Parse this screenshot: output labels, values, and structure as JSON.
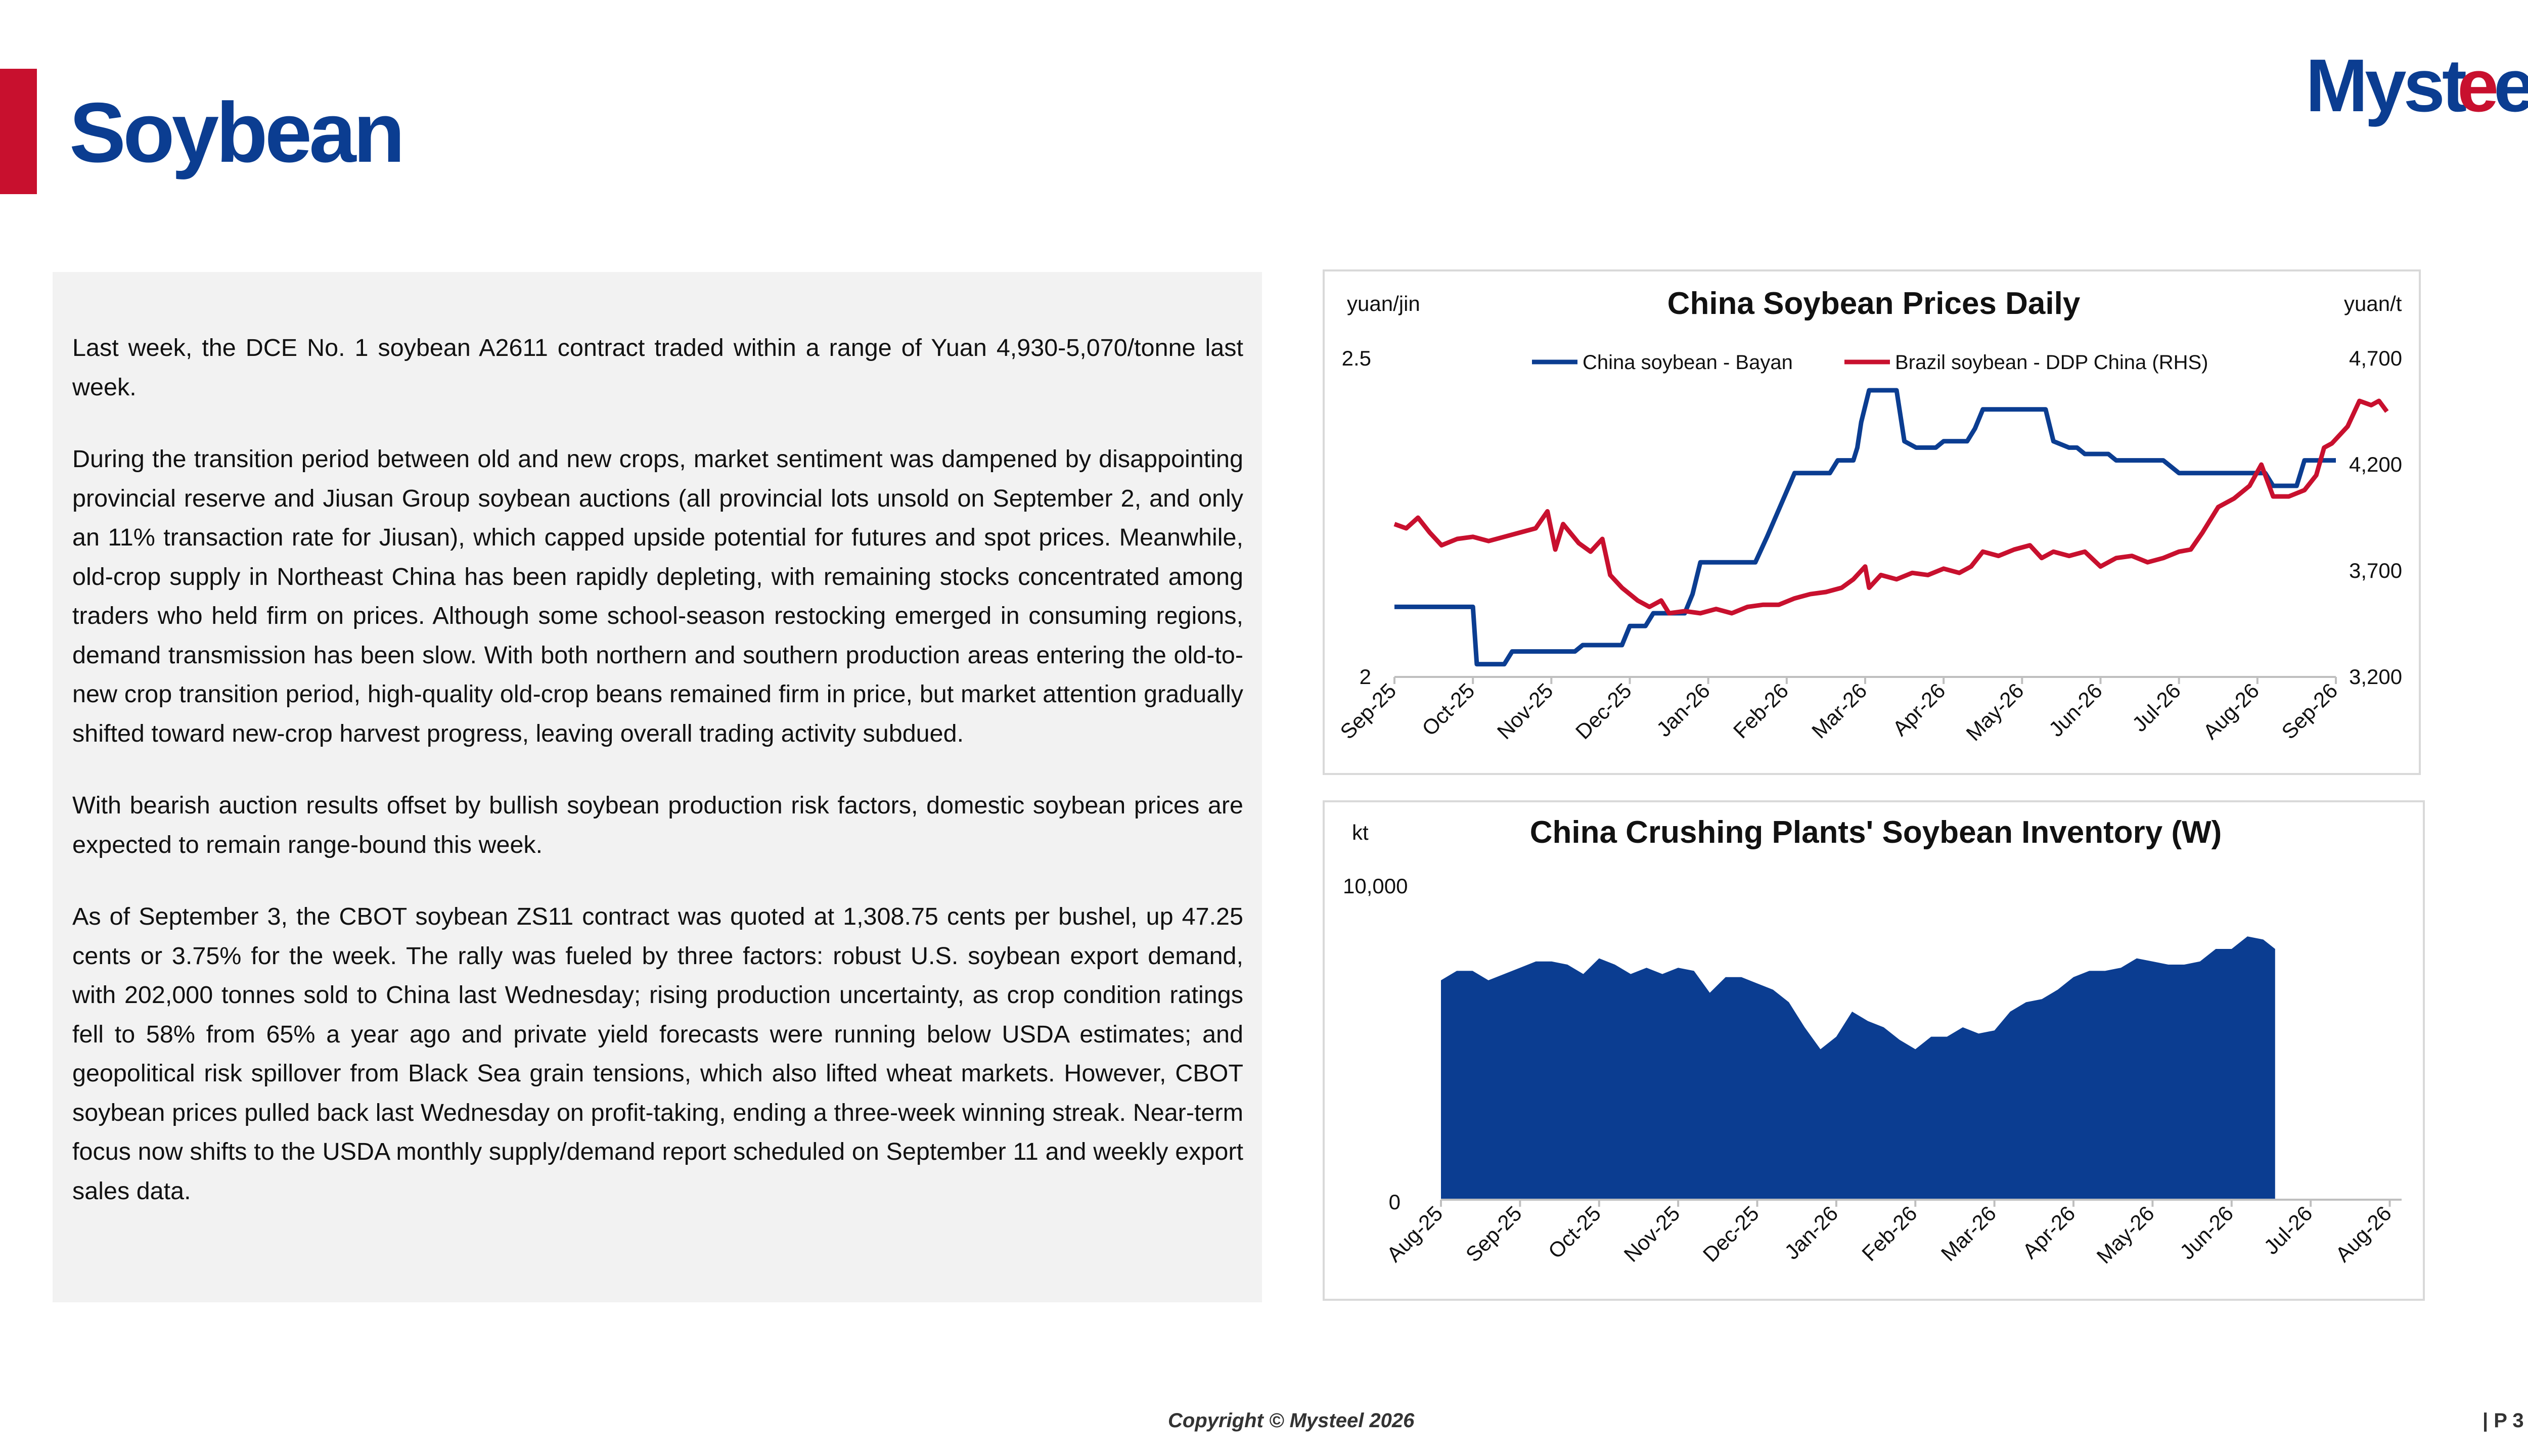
{
  "page": {
    "title": "Soybean",
    "logo_text": "Mysteel",
    "footer": "Copyright © Mysteel 2026",
    "page_number": "| P 3",
    "colors": {
      "brand_blue": "#0b3d91",
      "brand_red": "#c8102e",
      "panel_bg": "#f2f2f2"
    }
  },
  "text": {
    "paragraphs": [
      "Last week, the DCE No. 1 soybean A2611 contract traded within a range of Yuan 4,930-5,070/tonne last week.",
      "During the transition period between old and new crops, market sentiment was dampened by disappointing provincial reserve and Jiusan Group soybean auctions (all provincial lots unsold on September 2, and only an 11% transaction rate for Jiusan), which capped upside potential for futures and spot prices. Meanwhile, old-crop supply in Northeast China has been rapidly depleting, with remaining stocks concentrated among traders who held firm on prices. Although some school-season restocking emerged in consuming regions, demand transmission has been slow. With both northern and southern production areas entering the old-to-new crop transition period, high-quality old-crop beans remained firm in price, but market attention gradually shifted toward new-crop harvest progress, leaving overall trading activity subdued.",
      "With bearish auction results offset by bullish soybean production risk factors, domestic soybean prices are expected to remain range-bound this week.",
      "As of September 3, the CBOT soybean ZS11 contract was quoted at 1,308.75 cents per bushel, up 47.25 cents or 3.75% for the week. The rally was fueled by three factors: robust U.S. soybean export demand, with 202,000 tonnes sold to China last Wednesday; rising production uncertainty, as crop condition ratings fell to 58% from 65% a year ago and private yield forecasts were running below USDA estimates; and geopolitical risk spillover from Black Sea grain tensions, which also lifted wheat markets. However, CBOT soybean prices pulled back last Wednesday on profit-taking, ending a three-week winning streak. Near-term focus now shifts to the USDA monthly supply/demand report scheduled on September 11 and weekly export sales data."
    ]
  },
  "chart_data": [
    {
      "type": "line",
      "title": "China Soybean Prices Daily",
      "left_unit": "yuan/jin",
      "right_unit": "yuan/t",
      "left_ticks": [
        "2.5",
        "2"
      ],
      "right_ticks": [
        "4,700",
        "4,200",
        "3,700",
        "3,200"
      ],
      "ylim_left": [
        2,
        2.5
      ],
      "ylim_right": [
        3200,
        4700
      ],
      "x_ticks": [
        "Sep-25",
        "Oct-25",
        "Nov-25",
        "Dec-25",
        "Jan-26",
        "Feb-26",
        "Mar-26",
        "Apr-26",
        "May-26",
        "Jun-26",
        "Jul-26",
        "Aug-26",
        "Sep-26"
      ],
      "series": [
        {
          "name": "China soybean - Bayan",
          "axis": "left",
          "color": "#0b3d91",
          "points": [
            [
              0,
              2.11
            ],
            [
              0.35,
              2.11
            ],
            [
              0.45,
              2.11
            ],
            [
              1,
              2.11
            ],
            [
              1.05,
              2.02
            ],
            [
              1.4,
              2.02
            ],
            [
              1.5,
              2.04
            ],
            [
              2,
              2.04
            ],
            [
              2.3,
              2.04
            ],
            [
              2.4,
              2.05
            ],
            [
              2.9,
              2.05
            ],
            [
              3,
              2.08
            ],
            [
              3.2,
              2.08
            ],
            [
              3.3,
              2.1
            ],
            [
              3.7,
              2.1
            ],
            [
              3.8,
              2.13
            ],
            [
              3.9,
              2.18
            ],
            [
              4.6,
              2.18
            ],
            [
              4.75,
              2.22
            ],
            [
              5.1,
              2.32
            ],
            [
              5.55,
              2.32
            ],
            [
              5.65,
              2.34
            ],
            [
              5.85,
              2.34
            ],
            [
              5.9,
              2.36
            ],
            [
              5.95,
              2.4
            ],
            [
              6.05,
              2.45
            ],
            [
              6.4,
              2.45
            ],
            [
              6.5,
              2.37
            ],
            [
              6.65,
              2.36
            ],
            [
              6.9,
              2.36
            ],
            [
              7,
              2.37
            ],
            [
              7.3,
              2.37
            ],
            [
              7.4,
              2.39
            ],
            [
              7.5,
              2.42
            ],
            [
              8.3,
              2.42
            ],
            [
              8.4,
              2.37
            ],
            [
              8.6,
              2.36
            ],
            [
              8.7,
              2.36
            ],
            [
              8.8,
              2.35
            ],
            [
              9.1,
              2.35
            ],
            [
              9.2,
              2.34
            ],
            [
              9.8,
              2.34
            ],
            [
              10,
              2.32
            ],
            [
              11.1,
              2.32
            ],
            [
              11.2,
              2.3
            ],
            [
              11.5,
              2.3
            ],
            [
              11.55,
              2.32
            ],
            [
              11.6,
              2.34
            ],
            [
              12,
              2.34
            ]
          ]
        },
        {
          "name": "Brazil soybean - DDP China (RHS)",
          "axis": "right",
          "color": "#c8102e",
          "points": [
            [
              0,
              3920
            ],
            [
              0.15,
              3900
            ],
            [
              0.3,
              3950
            ],
            [
              0.45,
              3880
            ],
            [
              0.6,
              3820
            ],
            [
              0.8,
              3850
            ],
            [
              1,
              3860
            ],
            [
              1.2,
              3840
            ],
            [
              1.4,
              3860
            ],
            [
              1.6,
              3880
            ],
            [
              1.8,
              3900
            ],
            [
              1.95,
              3980
            ],
            [
              2.05,
              3800
            ],
            [
              2.15,
              3920
            ],
            [
              2.35,
              3830
            ],
            [
              2.5,
              3790
            ],
            [
              2.65,
              3850
            ],
            [
              2.75,
              3680
            ],
            [
              2.9,
              3620
            ],
            [
              3.1,
              3560
            ],
            [
              3.25,
              3530
            ],
            [
              3.4,
              3560
            ],
            [
              3.5,
              3500
            ],
            [
              3.7,
              3510
            ],
            [
              3.9,
              3500
            ],
            [
              4.1,
              3520
            ],
            [
              4.3,
              3500
            ],
            [
              4.5,
              3530
            ],
            [
              4.7,
              3540
            ],
            [
              4.9,
              3540
            ],
            [
              5.1,
              3570
            ],
            [
              5.3,
              3590
            ],
            [
              5.5,
              3600
            ],
            [
              5.7,
              3620
            ],
            [
              5.85,
              3660
            ],
            [
              6,
              3720
            ],
            [
              6.05,
              3620
            ],
            [
              6.2,
              3680
            ],
            [
              6.4,
              3660
            ],
            [
              6.6,
              3690
            ],
            [
              6.8,
              3680
            ],
            [
              7,
              3710
            ],
            [
              7.2,
              3690
            ],
            [
              7.35,
              3720
            ],
            [
              7.5,
              3790
            ],
            [
              7.7,
              3770
            ],
            [
              7.9,
              3800
            ],
            [
              8.1,
              3820
            ],
            [
              8.25,
              3760
            ],
            [
              8.4,
              3790
            ],
            [
              8.6,
              3770
            ],
            [
              8.8,
              3790
            ],
            [
              9,
              3720
            ],
            [
              9.2,
              3760
            ],
            [
              9.4,
              3770
            ],
            [
              9.6,
              3740
            ],
            [
              9.8,
              3760
            ],
            [
              10,
              3790
            ],
            [
              10.15,
              3800
            ],
            [
              10.3,
              3880
            ],
            [
              10.5,
              4000
            ],
            [
              10.7,
              4040
            ],
            [
              10.9,
              4100
            ],
            [
              11.05,
              4200
            ],
            [
              11.2,
              4050
            ],
            [
              11.4,
              4050
            ],
            [
              11.6,
              4080
            ],
            [
              11.75,
              4150
            ],
            [
              11.85,
              4280
            ],
            [
              11.95,
              4300
            ],
            [
              12.15,
              4380
            ],
            [
              12.3,
              4500
            ],
            [
              12.45,
              4480
            ],
            [
              12.55,
              4500
            ],
            [
              12.65,
              4450
            ]
          ]
        }
      ]
    },
    {
      "type": "area",
      "title": "China Crushing Plants' Soybean Inventory (W)",
      "ylabel": "kt",
      "y_ticks": [
        "10,000",
        "0"
      ],
      "ylim": [
        0,
        10000
      ],
      "x_ticks": [
        "Aug-25",
        "Sep-25",
        "Oct-25",
        "Nov-25",
        "Dec-25",
        "Jan-26",
        "Feb-26",
        "Mar-26",
        "Apr-26",
        "May-26",
        "Jun-26",
        "Jul-26",
        "Aug-26"
      ],
      "color": "#0b3d91",
      "points": [
        [
          0,
          7000
        ],
        [
          0.2,
          7300
        ],
        [
          0.4,
          7300
        ],
        [
          0.6,
          7000
        ],
        [
          0.8,
          7200
        ],
        [
          1,
          7400
        ],
        [
          1.2,
          7600
        ],
        [
          1.4,
          7600
        ],
        [
          1.6,
          7500
        ],
        [
          1.8,
          7200
        ],
        [
          2,
          7700
        ],
        [
          2.2,
          7500
        ],
        [
          2.4,
          7200
        ],
        [
          2.6,
          7400
        ],
        [
          2.8,
          7200
        ],
        [
          3,
          7400
        ],
        [
          3.2,
          7300
        ],
        [
          3.4,
          6600
        ],
        [
          3.6,
          7100
        ],
        [
          3.8,
          7100
        ],
        [
          4,
          6900
        ],
        [
          4.2,
          6700
        ],
        [
          4.4,
          6300
        ],
        [
          4.6,
          5500
        ],
        [
          4.8,
          4800
        ],
        [
          5,
          5200
        ],
        [
          5.2,
          6000
        ],
        [
          5.4,
          5700
        ],
        [
          5.6,
          5500
        ],
        [
          5.8,
          5100
        ],
        [
          6,
          4800
        ],
        [
          6.2,
          5200
        ],
        [
          6.4,
          5200
        ],
        [
          6.6,
          5500
        ],
        [
          6.8,
          5300
        ],
        [
          7,
          5400
        ],
        [
          7.2,
          6000
        ],
        [
          7.4,
          6300
        ],
        [
          7.6,
          6400
        ],
        [
          7.8,
          6700
        ],
        [
          8,
          7100
        ],
        [
          8.2,
          7300
        ],
        [
          8.4,
          7300
        ],
        [
          8.6,
          7400
        ],
        [
          8.8,
          7700
        ],
        [
          9,
          7600
        ],
        [
          9.2,
          7500
        ],
        [
          9.4,
          7500
        ],
        [
          9.6,
          7600
        ],
        [
          9.8,
          8000
        ],
        [
          10,
          8000
        ],
        [
          10.2,
          8400
        ],
        [
          10.4,
          8300
        ],
        [
          10.55,
          8000
        ]
      ]
    }
  ]
}
